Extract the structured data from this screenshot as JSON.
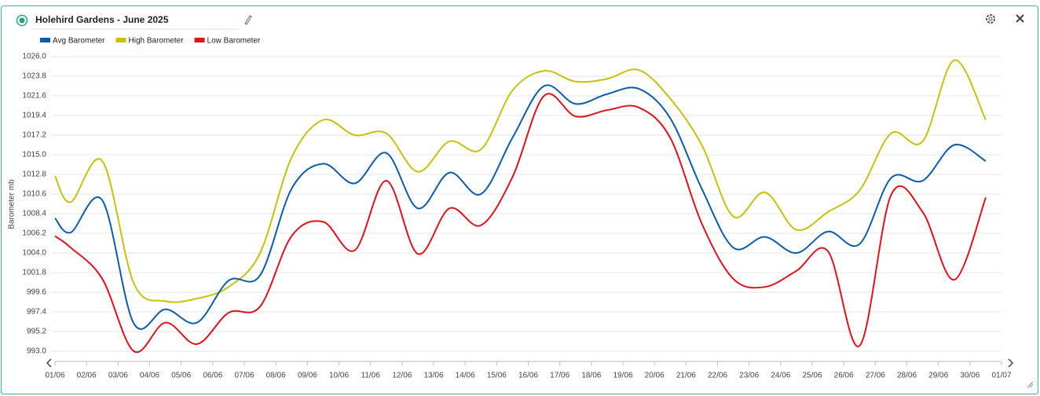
{
  "chart_data": {
    "type": "line",
    "title": "Holehird Gardens - June 2025",
    "ylabel": "Barometer mb",
    "x": [
      0,
      0.5,
      1.5,
      2.5,
      3.5,
      4.5,
      5.5,
      6.5,
      7.5,
      8.5,
      9.5,
      10.5,
      11.5,
      12.5,
      13.5,
      14.5,
      15.5,
      16.5,
      17.5,
      18.5,
      19.5,
      20.5,
      21.5,
      22.5,
      23.5,
      24.5,
      25.5,
      26.5,
      27.5,
      28.5,
      29.5
    ],
    "series": [
      {
        "name": "Avg Barometer",
        "color": "#0b5cad",
        "values": [
          1007.9,
          1006.3,
          1009.9,
          996.1,
          997.7,
          996.2,
          1000.9,
          1001.5,
          1011.2,
          1014.0,
          1011.8,
          1015.2,
          1009.0,
          1013.0,
          1010.6,
          1016.9,
          1022.7,
          1020.7,
          1021.8,
          1022.4,
          1019.1,
          1011.2,
          1004.6,
          1005.8,
          1004.0,
          1006.4,
          1005.0,
          1012.4,
          1012.1,
          1016.1,
          1014.3
        ]
      },
      {
        "name": "High Barometer",
        "color": "#c8c00a",
        "values": [
          1012.6,
          1009.7,
          1014.3,
          1000.6,
          998.6,
          998.9,
          1000.2,
          1004.0,
          1014.7,
          1018.9,
          1017.2,
          1017.4,
          1013.1,
          1016.5,
          1015.6,
          1022.2,
          1024.4,
          1023.2,
          1023.5,
          1024.5,
          1021.3,
          1016.1,
          1008.1,
          1010.8,
          1006.6,
          1008.6,
          1011.0,
          1017.4,
          1016.5,
          1025.6,
          1018.9
        ]
      },
      {
        "name": "Low Barometer",
        "color": "#e0121b",
        "values": [
          1005.9,
          1004.6,
          1001.1,
          993.0,
          996.2,
          993.8,
          997.3,
          998.0,
          1005.9,
          1007.5,
          1004.3,
          1012.1,
          1003.9,
          1009.0,
          1007.1,
          1012.5,
          1021.6,
          1019.3,
          1020.0,
          1020.3,
          1016.9,
          1007.3,
          1001.1,
          1000.2,
          1002.0,
          1004.2,
          993.6,
          1010.5,
          1008.6,
          1001.0,
          1010.2
        ]
      }
    ],
    "xlim": [
      0,
      30
    ],
    "xticks": [
      {
        "value": 0,
        "label": "01/06"
      },
      {
        "value": 1,
        "label": "02/06"
      },
      {
        "value": 2,
        "label": "03/06"
      },
      {
        "value": 3,
        "label": "04/06"
      },
      {
        "value": 4,
        "label": "05/06"
      },
      {
        "value": 5,
        "label": "06/06"
      },
      {
        "value": 6,
        "label": "07/06"
      },
      {
        "value": 7,
        "label": "08/06"
      },
      {
        "value": 8,
        "label": "09/06"
      },
      {
        "value": 9,
        "label": "10/06"
      },
      {
        "value": 10,
        "label": "11/06"
      },
      {
        "value": 11,
        "label": "12/06"
      },
      {
        "value": 12,
        "label": "13/06"
      },
      {
        "value": 13,
        "label": "14/06"
      },
      {
        "value": 14,
        "label": "15/06"
      },
      {
        "value": 15,
        "label": "16/06"
      },
      {
        "value": 16,
        "label": "17/06"
      },
      {
        "value": 17,
        "label": "18/06"
      },
      {
        "value": 18,
        "label": "19/06"
      },
      {
        "value": 19,
        "label": "20/06"
      },
      {
        "value": 20,
        "label": "21/06"
      },
      {
        "value": 21,
        "label": "22/06"
      },
      {
        "value": 22,
        "label": "23/06"
      },
      {
        "value": 23,
        "label": "24/06"
      },
      {
        "value": 24,
        "label": "25/06"
      },
      {
        "value": 25,
        "label": "26/06"
      },
      {
        "value": 26,
        "label": "27/06"
      },
      {
        "value": 27,
        "label": "28/06"
      },
      {
        "value": 28,
        "label": "29/06"
      },
      {
        "value": 29,
        "label": "30/06"
      },
      {
        "value": 30,
        "label": "01/07"
      }
    ],
    "ylim": [
      993.0,
      1026.0
    ],
    "yticks": [
      {
        "value": 993,
        "label": "993.0"
      },
      995.2,
      997.4,
      999.6,
      1001.8,
      {
        "value": 1004,
        "label": "1004.0"
      },
      1006.2,
      1008.4,
      1010.6,
      1012.8,
      {
        "value": 1015,
        "label": "1015.0"
      },
      1017.2,
      1019.4,
      1021.6,
      1023.8,
      {
        "value": 1026,
        "label": "1026.0"
      }
    ],
    "grid": true,
    "legend": "top-left"
  }
}
